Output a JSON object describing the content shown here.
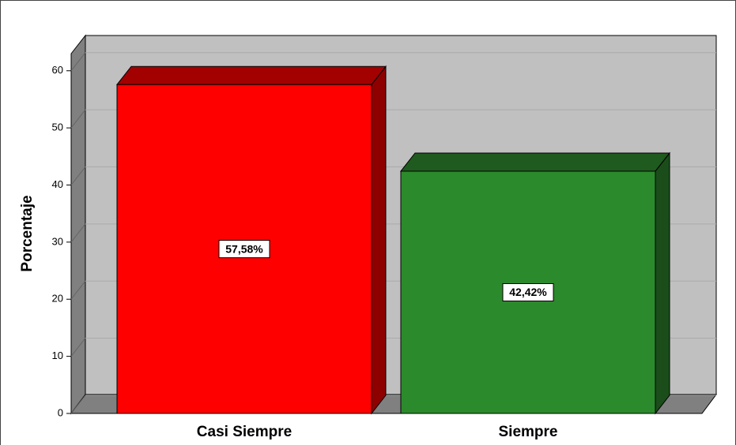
{
  "chart_data": {
    "type": "bar3d",
    "ylabel": "Porcentaje",
    "categories": [
      "Casi Siempre",
      "Siempre"
    ],
    "values": [
      57.58,
      42.42
    ],
    "value_labels": [
      "57,58%",
      "42,42%"
    ],
    "series_colors": [
      {
        "front": "#ff0000",
        "top": "#a30000",
        "side": "#8e0000"
      },
      {
        "front": "#2b8a2b",
        "top": "#1f5a1f",
        "side": "#1b4d1b"
      }
    ],
    "ylim": [
      0,
      63
    ],
    "yticks": [
      0,
      10,
      20,
      30,
      40,
      50,
      60
    ],
    "grid": true
  }
}
